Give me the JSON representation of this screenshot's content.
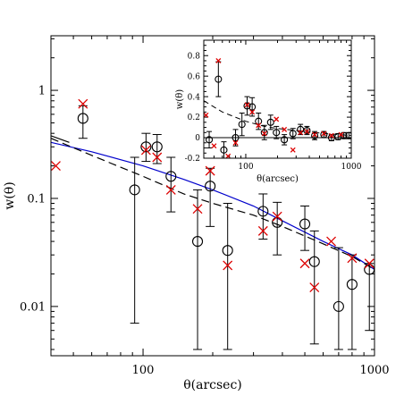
{
  "chart_data": [
    {
      "type": "scatter",
      "xlabel": "θ(arcsec)",
      "ylabel": "w(θ)",
      "xscale": "log",
      "yscale": "log",
      "xlim": [
        40,
        1000
      ],
      "ylim": [
        0.0035,
        3.2
      ],
      "xticks": [
        {
          "value": 100,
          "label": "100"
        },
        {
          "value": 1000,
          "label": "1000"
        }
      ],
      "yticks": [
        {
          "value": 0.01,
          "label": "0.01"
        },
        {
          "value": 0.1,
          "label": "0.1"
        },
        {
          "value": 1,
          "label": "1"
        }
      ],
      "series": [
        {
          "marker": "open-circle",
          "color": "#000000",
          "points": [
            {
              "x": 55,
              "y": 0.55,
              "lo": 0.36,
              "hi": 0.72
            },
            {
              "x": 92,
              "y": 0.12,
              "lo": 0.007,
              "hi": 0.24
            },
            {
              "x": 103,
              "y": 0.3,
              "lo": 0.22,
              "hi": 0.4
            },
            {
              "x": 115,
              "y": 0.3,
              "lo": 0.21,
              "hi": 0.39
            },
            {
              "x": 132,
              "y": 0.16,
              "lo": 0.075,
              "hi": 0.24
            },
            {
              "x": 172,
              "y": 0.04,
              "lo": 0.004,
              "hi": 0.12
            },
            {
              "x": 195,
              "y": 0.13,
              "lo": 0.055,
              "hi": 0.19
            },
            {
              "x": 232,
              "y": 0.033,
              "lo": 0.004,
              "hi": 0.09
            },
            {
              "x": 330,
              "y": 0.076,
              "lo": 0.042,
              "hi": 0.11
            },
            {
              "x": 380,
              "y": 0.06,
              "lo": 0.03,
              "hi": 0.092
            },
            {
              "x": 500,
              "y": 0.058,
              "lo": 0.033,
              "hi": 0.085
            },
            {
              "x": 550,
              "y": 0.026,
              "lo": 0.0045,
              "hi": 0.05
            },
            {
              "x": 700,
              "y": 0.01,
              "lo": 0.004,
              "hi": 0.035
            },
            {
              "x": 800,
              "y": 0.016,
              "lo": 0.004,
              "hi": 0.03
            },
            {
              "x": 950,
              "y": 0.022,
              "lo": 0.006,
              "hi": 0.025
            }
          ]
        },
        {
          "marker": "x-cross",
          "color": "#dd0000",
          "points": [
            {
              "x": 42,
              "y": 0.2
            },
            {
              "x": 55,
              "y": 0.75
            },
            {
              "x": 103,
              "y": 0.28
            },
            {
              "x": 115,
              "y": 0.24
            },
            {
              "x": 132,
              "y": 0.12
            },
            {
              "x": 172,
              "y": 0.08
            },
            {
              "x": 195,
              "y": 0.18
            },
            {
              "x": 232,
              "y": 0.024
            },
            {
              "x": 330,
              "y": 0.05
            },
            {
              "x": 380,
              "y": 0.068
            },
            {
              "x": 500,
              "y": 0.025
            },
            {
              "x": 550,
              "y": 0.015
            },
            {
              "x": 650,
              "y": 0.04
            },
            {
              "x": 800,
              "y": 0.028
            },
            {
              "x": 950,
              "y": 0.025
            }
          ]
        },
        {
          "style": "solid-line",
          "color": "#0000cc",
          "points": [
            {
              "x": 40,
              "y": 0.33
            },
            {
              "x": 60,
              "y": 0.27
            },
            {
              "x": 100,
              "y": 0.2
            },
            {
              "x": 150,
              "y": 0.15
            },
            {
              "x": 200,
              "y": 0.12
            },
            {
              "x": 300,
              "y": 0.085
            },
            {
              "x": 400,
              "y": 0.062
            },
            {
              "x": 600,
              "y": 0.04
            },
            {
              "x": 800,
              "y": 0.03
            },
            {
              "x": 1000,
              "y": 0.022
            }
          ]
        },
        {
          "style": "dashed-line",
          "color": "#000000",
          "points": [
            {
              "x": 40,
              "y": 0.36
            },
            {
              "x": 60,
              "y": 0.25
            },
            {
              "x": 100,
              "y": 0.16
            },
            {
              "x": 150,
              "y": 0.11
            },
            {
              "x": 200,
              "y": 0.09
            },
            {
              "x": 300,
              "y": 0.07
            },
            {
              "x": 400,
              "y": 0.055
            },
            {
              "x": 600,
              "y": 0.038
            },
            {
              "x": 800,
              "y": 0.029
            },
            {
              "x": 1000,
              "y": 0.022
            }
          ]
        },
        {
          "style": "solid-line",
          "color": "#000000",
          "points": [
            {
              "x": 40,
              "y": 0.38
            },
            {
              "x": 48,
              "y": 0.33
            }
          ]
        }
      ]
    },
    {
      "type": "scatter",
      "xlabel": "θ(arcsec)",
      "ylabel": "w(θ)",
      "xscale": "log",
      "yscale": "linear",
      "xlim": [
        40,
        1000
      ],
      "ylim": [
        -0.2,
        0.95
      ],
      "xticks": [
        {
          "value": 100,
          "label": "100"
        },
        {
          "value": 1000,
          "label": "1000"
        }
      ],
      "yticks": [
        {
          "value": -0.2,
          "label": "-0.2"
        },
        {
          "value": 0,
          "label": "0"
        },
        {
          "value": 0.2,
          "label": "0.2"
        },
        {
          "value": 0.4,
          "label": "0.4"
        },
        {
          "value": 0.6,
          "label": "0.6"
        },
        {
          "value": 0.8,
          "label": "0.8"
        }
      ],
      "series": [
        {
          "marker": "open-circle",
          "color": "#000000",
          "points": [
            {
              "x": 45,
              "y": -0.02,
              "lo": -0.1,
              "hi": 0.06
            },
            {
              "x": 55,
              "y": 0.57,
              "lo": 0.4,
              "hi": 0.74
            },
            {
              "x": 62,
              "y": -0.12,
              "lo": -0.2,
              "hi": -0.04
            },
            {
              "x": 80,
              "y": 0.0,
              "lo": -0.08,
              "hi": 0.08
            },
            {
              "x": 92,
              "y": 0.13,
              "lo": 0.02,
              "hi": 0.24
            },
            {
              "x": 103,
              "y": 0.31,
              "lo": 0.22,
              "hi": 0.4
            },
            {
              "x": 115,
              "y": 0.3,
              "lo": 0.21,
              "hi": 0.39
            },
            {
              "x": 132,
              "y": 0.16,
              "lo": 0.08,
              "hi": 0.24
            },
            {
              "x": 150,
              "y": 0.05,
              "lo": -0.02,
              "hi": 0.12
            },
            {
              "x": 172,
              "y": 0.15,
              "lo": 0.08,
              "hi": 0.22
            },
            {
              "x": 195,
              "y": 0.05,
              "lo": -0.01,
              "hi": 0.11
            },
            {
              "x": 232,
              "y": -0.02,
              "lo": -0.07,
              "hi": 0.03
            },
            {
              "x": 280,
              "y": 0.04,
              "lo": -0.01,
              "hi": 0.09
            },
            {
              "x": 330,
              "y": 0.08,
              "lo": 0.03,
              "hi": 0.13
            },
            {
              "x": 380,
              "y": 0.07,
              "lo": 0.03,
              "hi": 0.11
            },
            {
              "x": 450,
              "y": 0.02,
              "lo": -0.02,
              "hi": 0.06
            },
            {
              "x": 550,
              "y": 0.03,
              "lo": 0.0,
              "hi": 0.06
            },
            {
              "x": 650,
              "y": 0.0,
              "lo": -0.03,
              "hi": 0.03
            },
            {
              "x": 750,
              "y": 0.01,
              "lo": -0.02,
              "hi": 0.04
            },
            {
              "x": 850,
              "y": 0.02,
              "lo": -0.01,
              "hi": 0.05
            },
            {
              "x": 950,
              "y": 0.02,
              "lo": -0.01,
              "hi": 0.05
            }
          ]
        },
        {
          "marker": "x-cross",
          "color": "#dd0000",
          "points": [
            {
              "x": 42,
              "y": 0.22
            },
            {
              "x": 50,
              "y": -0.08
            },
            {
              "x": 55,
              "y": 0.75
            },
            {
              "x": 68,
              "y": -0.18
            },
            {
              "x": 80,
              "y": -0.05
            },
            {
              "x": 103,
              "y": 0.32
            },
            {
              "x": 115,
              "y": 0.25
            },
            {
              "x": 132,
              "y": 0.12
            },
            {
              "x": 150,
              "y": 0.04
            },
            {
              "x": 195,
              "y": 0.18
            },
            {
              "x": 232,
              "y": 0.08
            },
            {
              "x": 280,
              "y": -0.12
            },
            {
              "x": 330,
              "y": 0.05
            },
            {
              "x": 380,
              "y": 0.06
            },
            {
              "x": 450,
              "y": 0.03
            },
            {
              "x": 550,
              "y": 0.04
            },
            {
              "x": 650,
              "y": 0.02
            },
            {
              "x": 800,
              "y": 0.03
            }
          ]
        },
        {
          "style": "dashed-line",
          "color": "#000000",
          "points": [
            {
              "x": 40,
              "y": 0.36
            },
            {
              "x": 60,
              "y": 0.25
            },
            {
              "x": 100,
              "y": 0.16
            },
            {
              "x": 150,
              "y": 0.11
            },
            {
              "x": 200,
              "y": 0.09
            },
            {
              "x": 300,
              "y": 0.07
            },
            {
              "x": 400,
              "y": 0.055
            },
            {
              "x": 600,
              "y": 0.038
            },
            {
              "x": 800,
              "y": 0.029
            },
            {
              "x": 1000,
              "y": 0.022
            }
          ]
        },
        {
          "style": "solid-line",
          "color": "#000000",
          "points": [
            {
              "x": 40,
              "y": 0.0
            },
            {
              "x": 1000,
              "y": 0.0
            }
          ]
        }
      ]
    }
  ]
}
